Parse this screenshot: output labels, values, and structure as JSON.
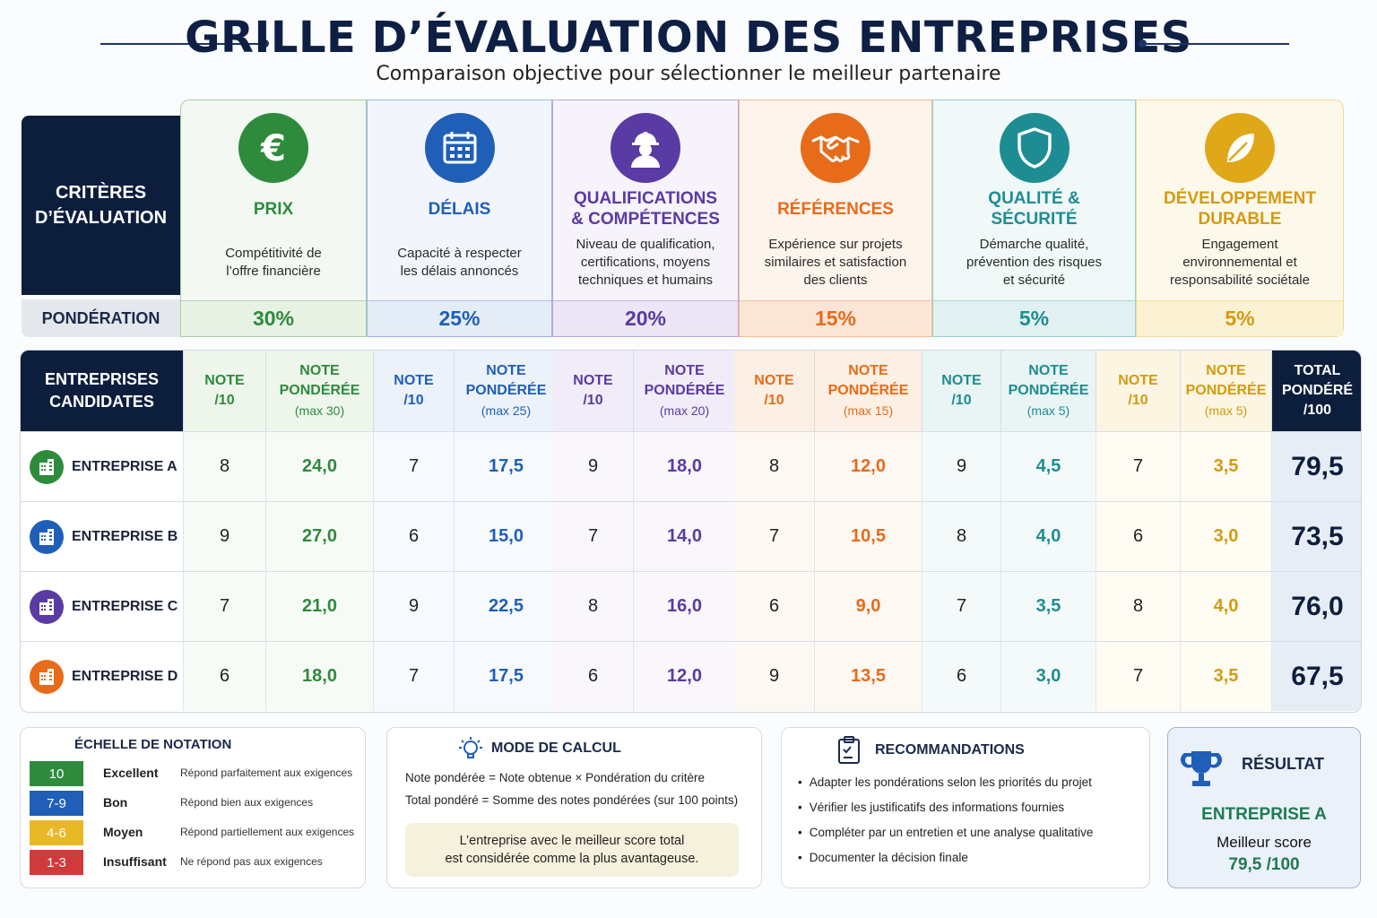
{
  "header": {
    "title": "GRILLE D’ÉVALUATION DES ENTREPRISES",
    "subtitle": "Comparaison objective pour sélectionner le meilleur partenaire"
  },
  "criteria_label": "CRITÈRES\nD’ÉVALUATION",
  "ponderation_label": "PONDÉRATION",
  "criteria": [
    {
      "name": "PRIX",
      "desc": "Compétitivité de\nl’offre financière",
      "weight": "30%",
      "color": "#2e8b3c",
      "icon": "euro-icon"
    },
    {
      "name": "DÉLAIS",
      "desc": "Capacité à respecter\nles délais annoncés",
      "weight": "25%",
      "color": "#1f5fb8",
      "icon": "calendar-icon"
    },
    {
      "name": "QUALIFICATIONS\n& COMPÉTENCES",
      "desc": "Niveau de qualification,\ncertifications, moyens\ntechniques et humains",
      "weight": "20%",
      "color": "#5a3aa3",
      "icon": "worker-icon"
    },
    {
      "name": "RÉFÉRENCES",
      "desc": "Expérience sur projets\nsimilaires et satisfaction\ndes clients",
      "weight": "15%",
      "color": "#e86b1a",
      "icon": "handshake-icon"
    },
    {
      "name": "QUALITÉ &\nSÉCURITÉ",
      "desc": "Démarche qualité,\nprévention des risques\net sécurité",
      "weight": "5%",
      "color": "#1d8d93",
      "icon": "shield-icon"
    },
    {
      "name": "DÉVELOPPEMENT\nDURABLE",
      "desc": "Engagement\nenvironnemental et\nresponsabilité sociétale",
      "weight": "5%",
      "color": "#e0a818",
      "icon": "leaf-icon"
    }
  ],
  "table": {
    "companies_header": "ENTREPRISES\nCANDIDATES",
    "note_header": "NOTE\n/10",
    "weighted_header": "NOTE\nPONDÉRÉE",
    "weighted_max": [
      "(max 30)",
      "(max 25)",
      "(max 20)",
      "(max 15)",
      "(max 5)",
      "(max 5)"
    ],
    "total_header": "TOTAL\nPONDÉRÉ\n/100",
    "rows": [
      {
        "name": "ENTREPRISE A",
        "color": "#2e8b3c",
        "scores": [
          [
            "8",
            "24,0"
          ],
          [
            "7",
            "17,5"
          ],
          [
            "9",
            "18,0"
          ],
          [
            "8",
            "12,0"
          ],
          [
            "9",
            "4,5"
          ],
          [
            "7",
            "3,5"
          ]
        ],
        "total": "79,5"
      },
      {
        "name": "ENTREPRISE B",
        "color": "#1f5fb8",
        "scores": [
          [
            "9",
            "27,0"
          ],
          [
            "6",
            "15,0"
          ],
          [
            "7",
            "14,0"
          ],
          [
            "7",
            "10,5"
          ],
          [
            "8",
            "4,0"
          ],
          [
            "6",
            "3,0"
          ]
        ],
        "total": "73,5"
      },
      {
        "name": "ENTREPRISE C",
        "color": "#5a3aa3",
        "scores": [
          [
            "7",
            "21,0"
          ],
          [
            "9",
            "22,5"
          ],
          [
            "8",
            "16,0"
          ],
          [
            "6",
            "9,0"
          ],
          [
            "7",
            "3,5"
          ],
          [
            "8",
            "4,0"
          ]
        ],
        "total": "76,0"
      },
      {
        "name": "ENTREPRISE D",
        "color": "#e86b1a",
        "scores": [
          [
            "6",
            "18,0"
          ],
          [
            "7",
            "17,5"
          ],
          [
            "6",
            "12,0"
          ],
          [
            "9",
            "13,5"
          ],
          [
            "6",
            "3,0"
          ],
          [
            "7",
            "3,5"
          ]
        ],
        "total": "67,5"
      }
    ]
  },
  "scale": {
    "title": "ÉCHELLE DE NOTATION",
    "items": [
      {
        "range": "10",
        "label": "Excellent",
        "desc": "Répond parfaitement aux exigences",
        "color": "#2e8b3c"
      },
      {
        "range": "7-9",
        "label": "Bon",
        "desc": "Répond bien aux exigences",
        "color": "#1f5fb8"
      },
      {
        "range": "4-6",
        "label": "Moyen",
        "desc": "Répond partiellement aux exigences",
        "color": "#e8b826"
      },
      {
        "range": "1-3",
        "label": "Insuffisant",
        "desc": "Ne répond pas aux exigences",
        "color": "#d13a3a"
      }
    ]
  },
  "calcul": {
    "title": "MODE DE CALCUL",
    "line1": "Note pondérée = Note obtenue × Pondération du critère",
    "line2": "Total pondéré = Somme des notes pondérées (sur 100 points)",
    "note": "L’entreprise avec le meilleur score total\nest considérée comme la plus avantageuse."
  },
  "recommandations": {
    "title": "RECOMMANDATIONS",
    "items": [
      "Adapter les pondérations selon les priorités du projet",
      "Vérifier les justificatifs des informations fournies",
      "Compléter par un entretien et une analyse qualitative",
      "Documenter la décision finale"
    ]
  },
  "resultat": {
    "title": "RÉSULTAT",
    "winner": "ENTREPRISE A",
    "label": "Meilleur score",
    "score": "79,5 /100"
  }
}
